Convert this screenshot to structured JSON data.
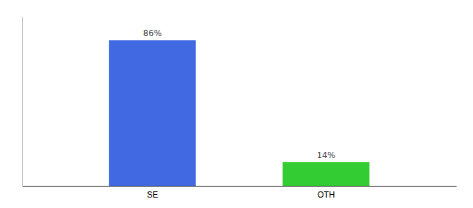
{
  "chart_data": {
    "type": "bar",
    "categories": [
      "SE",
      "OTH"
    ],
    "values": [
      86,
      14
    ],
    "value_labels": [
      "86%",
      "14%"
    ],
    "colors": [
      "#4169e1",
      "#33cc33"
    ],
    "ylim": [
      0,
      100
    ],
    "data_labels": true,
    "tick_labels": "x",
    "grid": false
  }
}
